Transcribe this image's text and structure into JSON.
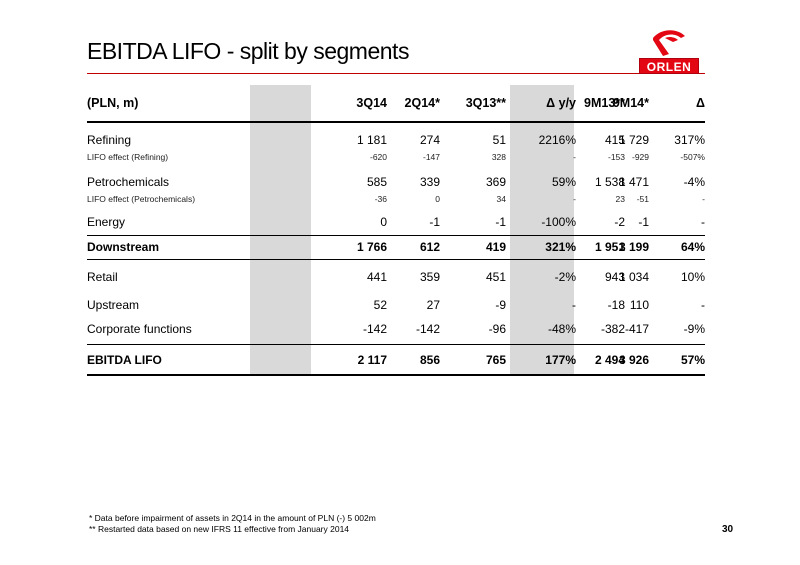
{
  "slide": {
    "title": "EBITDA LIFO - split by segments",
    "logo_text": "ORLEN",
    "page_number": "30",
    "brand_color": "#e30613",
    "accent_rule_color": "#c00000",
    "highlight_column_color": "#d9d9d9"
  },
  "table": {
    "headers": [
      "(PLN, m)",
      "3Q14",
      "2Q14*",
      "3Q13**",
      "Δ y/y",
      "9M14*",
      "9M13**",
      "Δ"
    ],
    "rows": [
      {
        "label": "Refining",
        "values": [
          "1 181",
          "274",
          "51",
          "2216%",
          "1 729",
          "415",
          "317%"
        ]
      },
      {
        "label": "LIFO effect (Refining)",
        "values": [
          "-620",
          "-147",
          "328",
          "-",
          "-929",
          "-153",
          "-507%"
        ]
      },
      {
        "label": "Petrochemicals",
        "values": [
          "585",
          "339",
          "369",
          "59%",
          "1 471",
          "1 538",
          "-4%"
        ]
      },
      {
        "label": "LIFO effect (Petrochemicals)",
        "values": [
          "-36",
          "0",
          "34",
          "-",
          "-51",
          "23",
          "-"
        ]
      },
      {
        "label": "Energy",
        "values": [
          "0",
          "-1",
          "-1",
          "-100%",
          "-1",
          "-2",
          "-"
        ]
      },
      {
        "label": "Downstream",
        "values": [
          "1 766",
          "612",
          "419",
          "321%",
          "3 199",
          "1 951",
          "64%"
        ]
      },
      {
        "label": "Retail",
        "values": [
          "441",
          "359",
          "451",
          "-2%",
          "1 034",
          "943",
          "10%"
        ]
      },
      {
        "label": "Upstream",
        "values": [
          "52",
          "27",
          "-9",
          "-",
          "110",
          "-18",
          "-"
        ]
      },
      {
        "label": "Corporate functions",
        "values": [
          "-142",
          "-142",
          "-96",
          "-48%",
          "-417",
          "-382",
          "-9%"
        ]
      },
      {
        "label": "EBITDA LIFO",
        "values": [
          "2 117",
          "856",
          "765",
          "177%",
          "3 926",
          "2 494",
          "57%"
        ]
      }
    ]
  },
  "footnotes": [
    "*  Data before impairment of assets in 2Q14 in the amount of PLN (-) 5 002m",
    "** Restarted data based on new IFRS 11 effective from January 2014"
  ]
}
